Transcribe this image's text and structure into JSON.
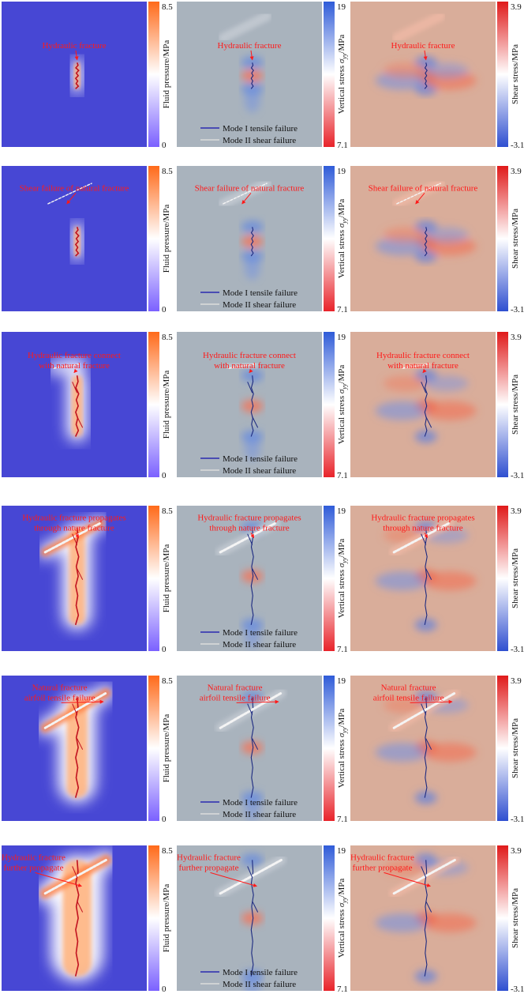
{
  "colorbars": {
    "fluid": {
      "label": "Fluid pressure/MPa",
      "max": "8.5",
      "min": "0"
    },
    "vertical": {
      "label_prefix": "Vertical stress ",
      "label_symbol": "σ",
      "label_sub": "yy",
      "label_suffix": "/MPa",
      "max": "19",
      "min": "7.1"
    },
    "shear": {
      "label": "Shear stress/MPa",
      "max": "3.9",
      "min": "-3.1"
    }
  },
  "legend": {
    "mode1": "Mode I tensile failure",
    "mode2": "Mode II shear failure",
    "mode1_color": "#2b2bb0",
    "mode2_color": "#dcdcdc"
  },
  "colors": {
    "annotation": "#ff1a1a",
    "fluid_background": "#4747d4",
    "stress_background": "#a9b3bd",
    "shear_background": "#d9ad9a"
  },
  "rows": [
    {
      "annotations": [
        [
          "Hydraulic fracture"
        ],
        [
          "Hydraulic fracture"
        ],
        [
          "Hydraulic fracture"
        ]
      ]
    },
    {
      "annotations": [
        [
          "Shear failure of natural fracture"
        ],
        [
          "Shear failure of natural fracture"
        ],
        [
          "Shear failure of natural fracture"
        ]
      ]
    },
    {
      "annotations": [
        [
          "Hydraulic fracture connect",
          "with natural fracture"
        ],
        [
          "Hydraulic fracture connect",
          "with natural fracture"
        ],
        [
          "Hydraulic fracture connect",
          "with natural fracture"
        ]
      ]
    },
    {
      "annotations": [
        [
          "Hydraulic fracture propagates",
          "through nature fracture"
        ],
        [
          "Hydraulic fracture propagates",
          "through nature fracture"
        ],
        [
          "Hydraulic fracture propagates",
          "through nature fracture"
        ]
      ]
    },
    {
      "annotations": [
        [
          "Natural fracture",
          "airfoil tensile failure"
        ],
        [
          "Natural fracture",
          "airfoil tensile failure"
        ],
        [
          "Natural fracture",
          "airfoil tensile failure"
        ]
      ]
    },
    {
      "annotations": [
        [
          "Hydraulic fracture",
          "further propagate"
        ],
        [
          "Hydraulic fracture",
          "further propagate"
        ],
        [
          "Hydraulic fracture",
          "further propagate"
        ]
      ]
    }
  ]
}
